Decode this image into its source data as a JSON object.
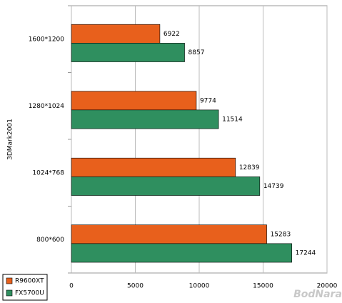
{
  "chart_data": {
    "type": "hbar",
    "ylabel": "3DMark2001",
    "watermark": "BodNara",
    "categories": [
      "1600*1200",
      "1280*1024",
      "1024*768",
      "800*600"
    ],
    "series": [
      {
        "name": "R9600XT",
        "color": "#e8601c",
        "values": [
          6922,
          9774,
          12839,
          15283
        ]
      },
      {
        "name": "FX5700U",
        "color": "#2f8f5f",
        "values": [
          8857,
          11514,
          14739,
          17244
        ]
      }
    ],
    "xlim": [
      0,
      20000
    ],
    "xticks": [
      0,
      5000,
      10000,
      15000,
      20000
    ],
    "grid": true,
    "legend": "bottom-left"
  }
}
